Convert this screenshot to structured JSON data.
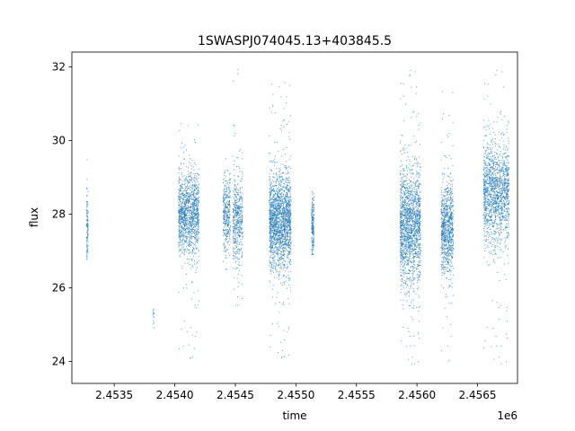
{
  "chart_data": {
    "type": "scatter",
    "title": "1SWASPJ074045.13+403845.5",
    "xlabel": "time",
    "ylabel": "flux",
    "x_offset_label": "1e6",
    "xlim": [
      2453150,
      2456830
    ],
    "ylim": [
      23.4,
      32.4
    ],
    "x_ticks": [
      2453500,
      2454000,
      2454500,
      2455000,
      2455500,
      2456000,
      2456500
    ],
    "x_tick_labels": [
      "2.4535",
      "2.4540",
      "2.4545",
      "2.4550",
      "2.4555",
      "2.4560",
      "2.4565"
    ],
    "y_ticks": [
      24,
      26,
      28,
      30,
      32
    ],
    "y_tick_labels": [
      "24",
      "26",
      "28",
      "30",
      "32"
    ],
    "grid": false,
    "legend": "none",
    "marker_color": "#1f77b4",
    "clusters": [
      {
        "x_range": [
          2453270,
          2453285
        ],
        "y_center": 27.6,
        "y_spread": 0.45,
        "y_min": 26.7,
        "y_max": 29.8,
        "count": 110
      },
      {
        "x_range": [
          2453820,
          2453830
        ],
        "y_center": 25.2,
        "y_spread": 0.2,
        "y_min": 24.9,
        "y_max": 25.6,
        "count": 14
      },
      {
        "x_range": [
          2454030,
          2454200
        ],
        "y_center": 28.0,
        "y_spread": 0.55,
        "y_min": 24.0,
        "y_max": 30.6,
        "count": 1300
      },
      {
        "x_range": [
          2454400,
          2454460
        ],
        "y_center": 28.0,
        "y_spread": 0.5,
        "y_min": 26.5,
        "y_max": 29.5,
        "count": 350
      },
      {
        "x_range": [
          2454480,
          2454560
        ],
        "y_center": 27.9,
        "y_spread": 0.6,
        "y_min": 25.0,
        "y_max": 32.0,
        "count": 500
      },
      {
        "x_range": [
          2454780,
          2454960
        ],
        "y_center": 27.8,
        "y_spread": 0.65,
        "y_min": 24.0,
        "y_max": 31.7,
        "count": 1900
      },
      {
        "x_range": [
          2455130,
          2455150
        ],
        "y_center": 27.7,
        "y_spread": 0.4,
        "y_min": 26.9,
        "y_max": 28.6,
        "count": 200
      },
      {
        "x_range": [
          2455860,
          2456030
        ],
        "y_center": 27.7,
        "y_spread": 0.8,
        "y_min": 23.8,
        "y_max": 32.0,
        "count": 1700
      },
      {
        "x_range": [
          2456200,
          2456300
        ],
        "y_center": 27.6,
        "y_spread": 0.6,
        "y_min": 23.9,
        "y_max": 31.5,
        "count": 900
      },
      {
        "x_range": [
          2456550,
          2456760
        ],
        "y_center": 28.6,
        "y_spread": 0.7,
        "y_min": 23.8,
        "y_max": 32.0,
        "count": 1500
      }
    ]
  }
}
